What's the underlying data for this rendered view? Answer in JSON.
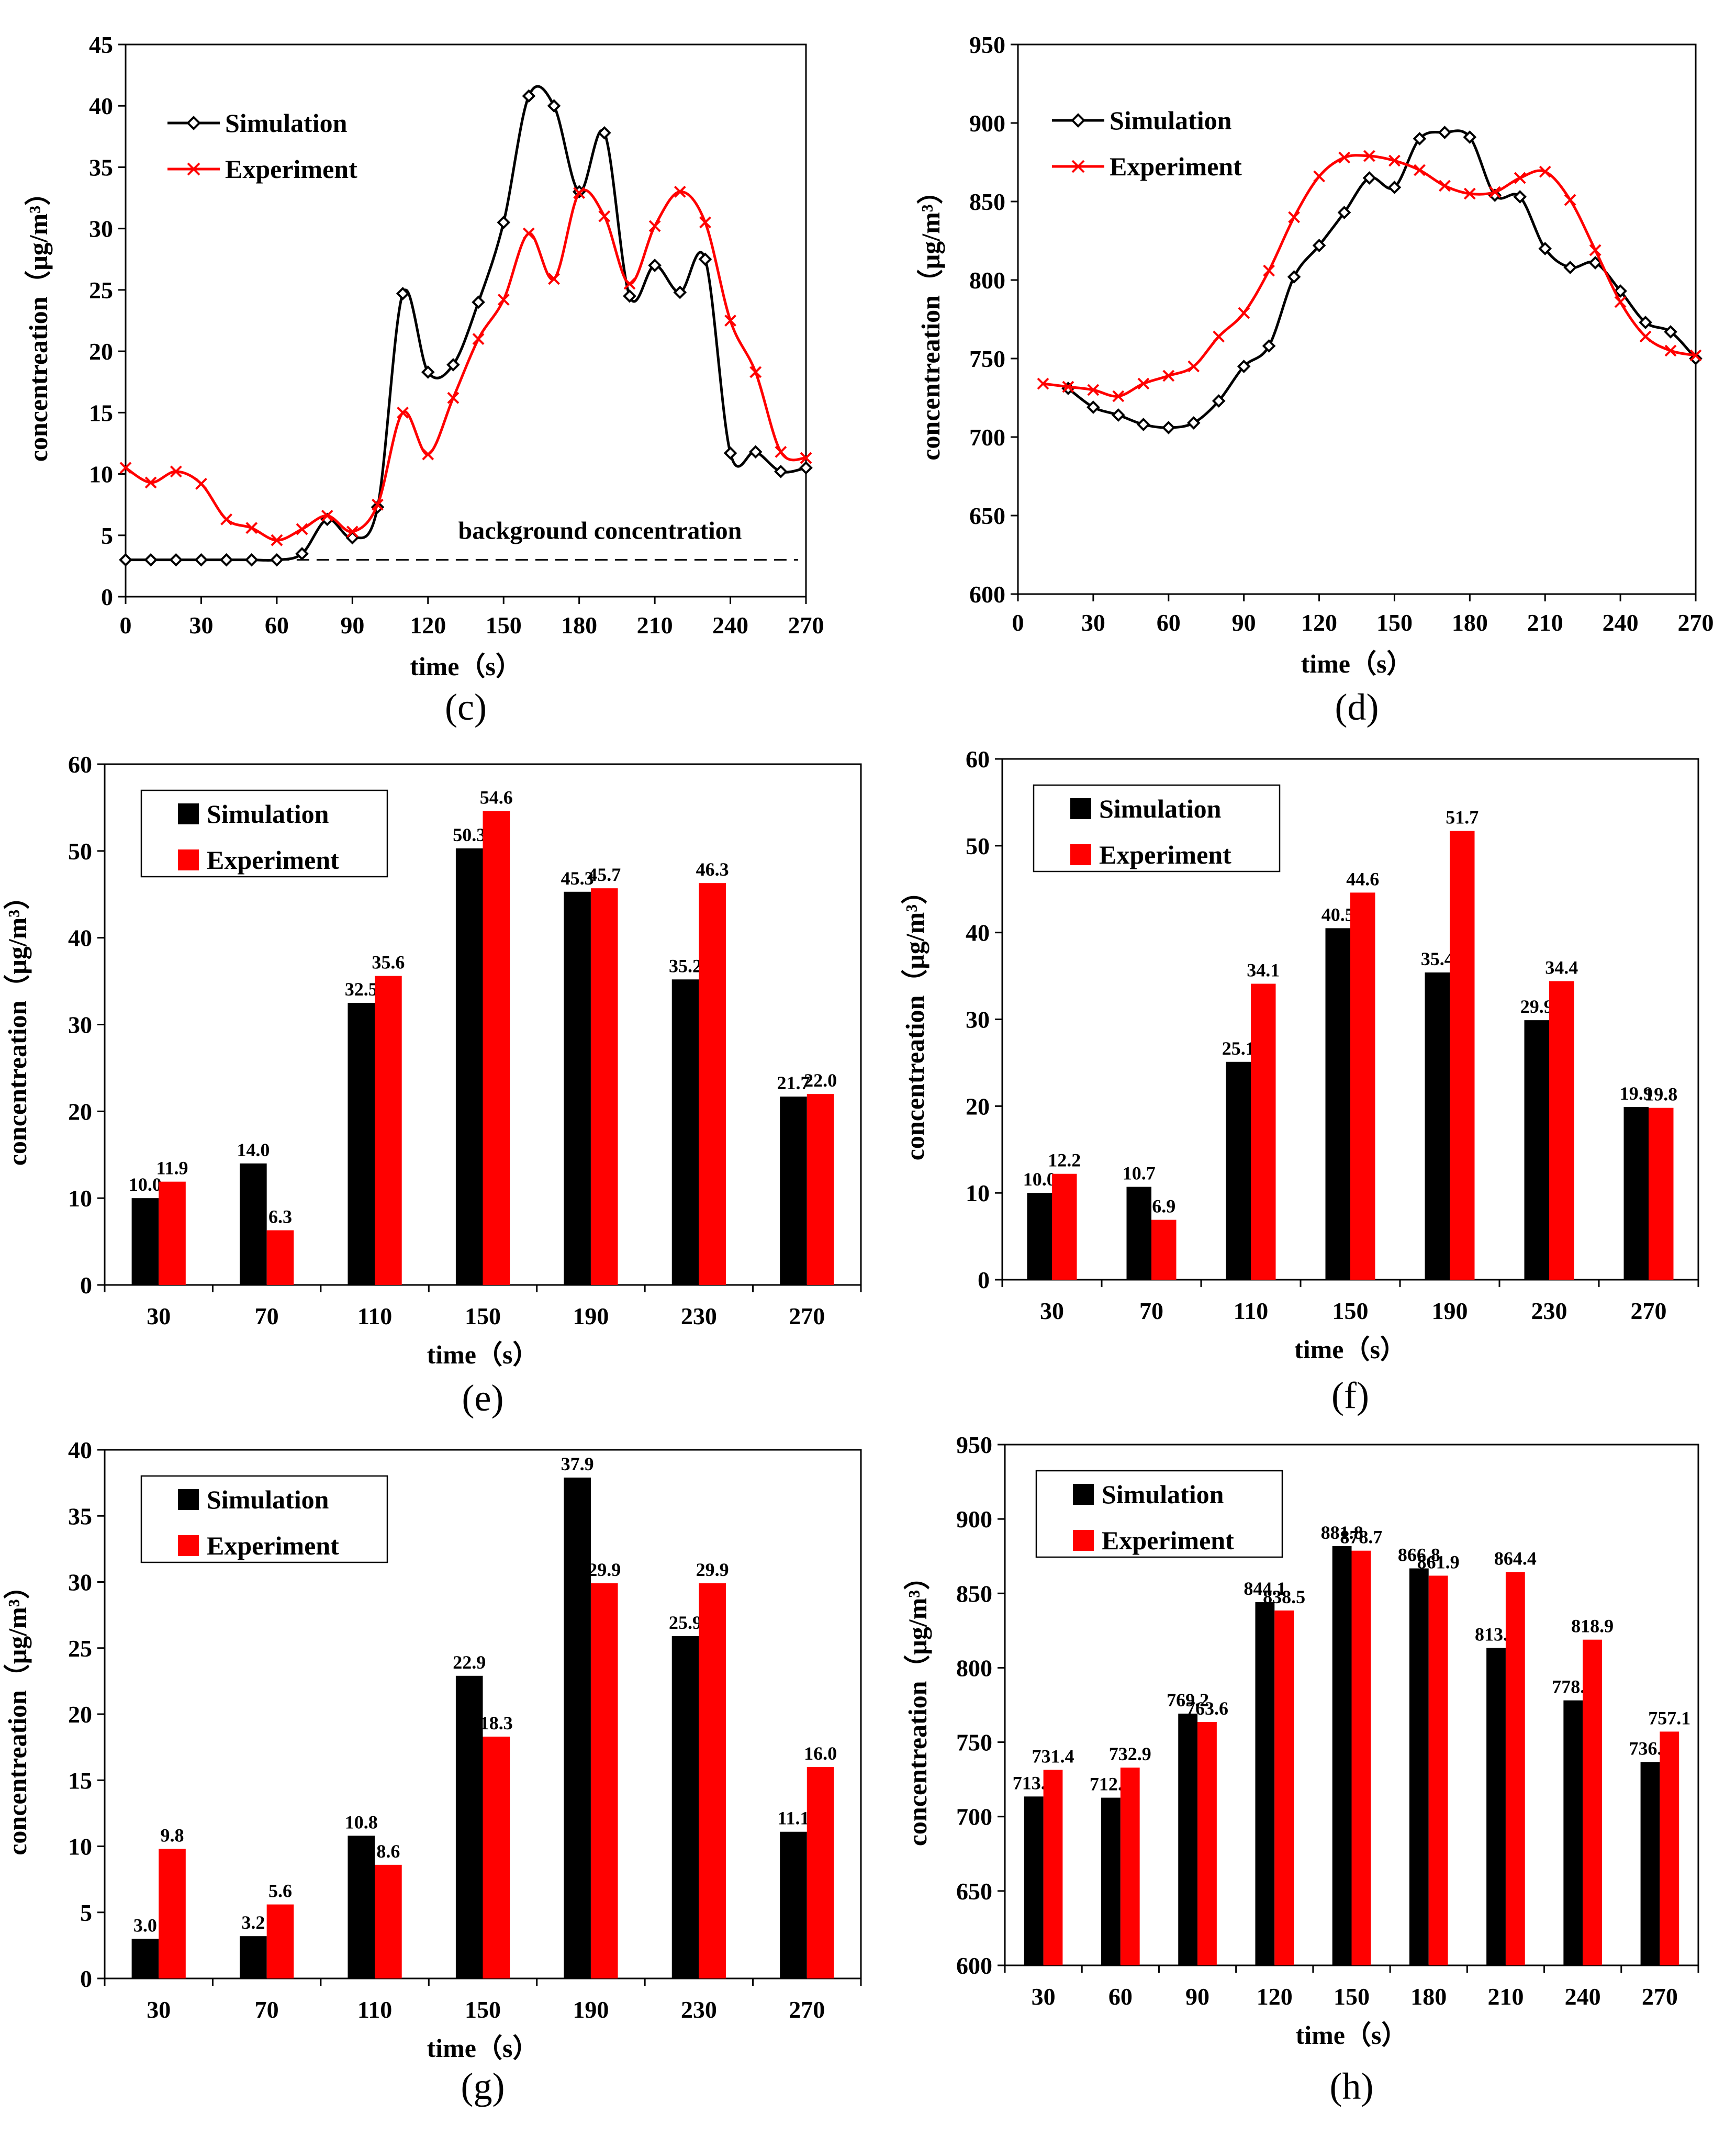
{
  "chart_data": [
    {
      "id": "c",
      "type": "line",
      "panel_label": "(c)",
      "xlabel": "time（s）",
      "ylabel": "concentreation（μg/m³）",
      "xlim": [
        0,
        270
      ],
      "ylim": [
        0,
        45
      ],
      "xticks": [
        0,
        30,
        60,
        90,
        120,
        150,
        180,
        210,
        240,
        270
      ],
      "yticks": [
        0,
        5,
        10,
        15,
        20,
        25,
        30,
        35,
        40,
        45
      ],
      "legend": [
        "Simulation",
        "Experiment"
      ],
      "series": [
        {
          "name": "Simulation",
          "color": "#000000",
          "marker": "diamond",
          "x": [
            0,
            10,
            20,
            30,
            40,
            50,
            60,
            70,
            80,
            90,
            100,
            110,
            120,
            130,
            140,
            150,
            160,
            170,
            180,
            190,
            200,
            210,
            220,
            230,
            240,
            250,
            260,
            270
          ],
          "y": [
            3.0,
            3.0,
            3.0,
            3.0,
            3.0,
            3.0,
            3.0,
            3.5,
            6.3,
            4.8,
            7.3,
            24.7,
            18.3,
            18.9,
            24.0,
            30.5,
            40.8,
            40.0,
            33.0,
            37.8,
            24.5,
            27.0,
            24.8,
            27.5,
            11.7,
            11.8,
            10.2,
            10.5
          ]
        },
        {
          "name": "Experiment",
          "color": "#ff0000",
          "marker": "x",
          "x": [
            0,
            10,
            20,
            30,
            40,
            50,
            60,
            70,
            80,
            90,
            100,
            110,
            120,
            130,
            140,
            150,
            160,
            170,
            180,
            190,
            200,
            210,
            220,
            230,
            240,
            250,
            260,
            270
          ],
          "y": [
            10.5,
            9.3,
            10.2,
            9.2,
            6.3,
            5.6,
            4.6,
            5.5,
            6.6,
            5.3,
            7.5,
            15.0,
            11.6,
            16.2,
            21.0,
            24.2,
            29.6,
            25.9,
            32.9,
            31.0,
            25.5,
            30.2,
            33.0,
            30.5,
            22.5,
            18.3,
            11.8,
            11.3
          ]
        }
      ],
      "background_concentration": {
        "label": "background concentration",
        "value": 3
      }
    },
    {
      "id": "d",
      "type": "line",
      "panel_label": "(d)",
      "xlabel": "time（s）",
      "ylabel": "concentreation（μg/m³）",
      "xlim": [
        0,
        270
      ],
      "ylim": [
        600,
        950
      ],
      "xticks": [
        0,
        30,
        60,
        90,
        120,
        150,
        180,
        210,
        240,
        270
      ],
      "yticks": [
        600,
        650,
        700,
        750,
        800,
        850,
        900,
        950
      ],
      "legend": [
        "Simulation",
        "Experiment"
      ],
      "series": [
        {
          "name": "Simulation",
          "color": "#000000",
          "marker": "diamond",
          "x": [
            20,
            30,
            40,
            50,
            60,
            70,
            80,
            90,
            100,
            110,
            120,
            130,
            140,
            150,
            160,
            170,
            180,
            190,
            200,
            210,
            220,
            230,
            240,
            250,
            260,
            270
          ],
          "y": [
            731,
            719,
            714,
            708,
            706,
            709,
            723,
            745,
            758,
            802,
            822,
            843,
            865,
            859,
            890,
            894,
            891,
            854,
            853,
            820,
            808,
            811,
            793,
            773,
            767,
            750
          ]
        },
        {
          "name": "Experiment",
          "color": "#ff0000",
          "marker": "x",
          "x": [
            10,
            20,
            30,
            40,
            50,
            60,
            70,
            80,
            90,
            100,
            110,
            120,
            130,
            140,
            150,
            160,
            170,
            180,
            190,
            200,
            210,
            220,
            230,
            240,
            250,
            260,
            270
          ],
          "y": [
            734,
            732,
            730,
            726,
            734,
            739,
            745,
            764,
            779,
            806,
            840,
            866,
            878,
            879,
            876,
            870,
            860,
            855,
            856,
            865,
            869,
            851,
            819,
            786,
            764,
            755,
            752
          ]
        }
      ]
    },
    {
      "id": "e",
      "type": "bar",
      "panel_label": "(e)",
      "xlabel": "time（s）",
      "ylabel": "concentreation（μg/m³）",
      "ylim": [
        0,
        60
      ],
      "yticks": [
        0,
        10,
        20,
        30,
        40,
        50,
        60
      ],
      "categories": [
        "30",
        "70",
        "110",
        "150",
        "190",
        "230",
        "270"
      ],
      "legend": [
        "Simulation",
        "Experiment"
      ],
      "series": [
        {
          "name": "Simulation",
          "color": "#000000",
          "values": [
            10.0,
            14.0,
            32.5,
            50.3,
            45.3,
            35.2,
            21.7
          ],
          "labels": [
            "10.0",
            "14.0",
            "32.5",
            "50.3",
            "45.3",
            "35.2",
            "21.7"
          ]
        },
        {
          "name": "Experiment",
          "color": "#ff0000",
          "values": [
            11.9,
            6.3,
            35.6,
            54.6,
            45.7,
            46.3,
            22.0
          ],
          "labels": [
            "11.9",
            "6.3",
            "35.6",
            "54.6",
            "45.7",
            "46.3",
            "22.0"
          ]
        }
      ]
    },
    {
      "id": "f",
      "type": "bar",
      "panel_label": "(f)",
      "xlabel": "time（s）",
      "ylabel": "concentreation（μg/m³）",
      "ylim": [
        0,
        60
      ],
      "yticks": [
        0,
        10,
        20,
        30,
        40,
        50,
        60
      ],
      "categories": [
        "30",
        "70",
        "110",
        "150",
        "190",
        "230",
        "270"
      ],
      "legend": [
        "Simulation",
        "Experiment"
      ],
      "series": [
        {
          "name": "Simulation",
          "color": "#000000",
          "values": [
            10.0,
            10.7,
            25.1,
            40.5,
            35.4,
            29.9,
            19.9
          ],
          "labels": [
            "10.0",
            "10.7",
            "25.1",
            "40.5",
            "35.4",
            "29.9",
            "19.9"
          ]
        },
        {
          "name": "Experiment",
          "color": "#ff0000",
          "values": [
            12.2,
            6.9,
            34.1,
            44.6,
            51.7,
            34.4,
            19.8
          ],
          "labels": [
            "12.2",
            "6.9",
            "34.1",
            "44.6",
            "51.7",
            "34.4",
            "19.8"
          ]
        }
      ]
    },
    {
      "id": "g",
      "type": "bar",
      "panel_label": "(g)",
      "xlabel": "time（s）",
      "ylabel": "concentreation（μg/m³）",
      "ylim": [
        0,
        40
      ],
      "yticks": [
        0,
        5,
        10,
        15,
        20,
        25,
        30,
        35,
        40
      ],
      "categories": [
        "30",
        "70",
        "110",
        "150",
        "190",
        "230",
        "270"
      ],
      "legend": [
        "Simulation",
        "Experiment"
      ],
      "series": [
        {
          "name": "Simulation",
          "color": "#000000",
          "values": [
            3.0,
            3.2,
            10.8,
            22.9,
            37.9,
            25.9,
            11.1
          ],
          "labels": [
            "3.0",
            "3.2",
            "10.8",
            "22.9",
            "37.9",
            "25.9",
            "11.1"
          ]
        },
        {
          "name": "Experiment",
          "color": "#ff0000",
          "values": [
            9.8,
            5.6,
            8.6,
            18.3,
            29.9,
            29.9,
            16.0
          ],
          "labels": [
            "9.8",
            "5.6",
            "8.6",
            "18.3",
            "29.9",
            "29.9",
            "16.0"
          ]
        }
      ]
    },
    {
      "id": "h",
      "type": "bar",
      "panel_label": "(h)",
      "xlabel": "time（s）",
      "ylabel": "concentreation（μg/m³）",
      "ylim": [
        600,
        950
      ],
      "yticks": [
        600,
        650,
        700,
        750,
        800,
        850,
        900,
        950
      ],
      "categories": [
        "30",
        "60",
        "90",
        "120",
        "150",
        "180",
        "210",
        "240",
        "270"
      ],
      "legend": [
        "Simulation",
        "Experiment"
      ],
      "series": [
        {
          "name": "Simulation",
          "color": "#000000",
          "values": [
            713.5,
            712.7,
            769.2,
            844.1,
            881.8,
            866.8,
            813.3,
            778.1,
            736.7
          ],
          "labels": [
            "713.5",
            "712.7",
            "769.2",
            "844.1",
            "881.8",
            "866.8",
            "813.3",
            "778.1",
            "736.7"
          ]
        },
        {
          "name": "Experiment",
          "color": "#ff0000",
          "values": [
            731.4,
            732.9,
            763.6,
            838.5,
            878.7,
            861.9,
            864.4,
            818.9,
            757.1
          ],
          "labels": [
            "731.4",
            "732.9",
            "763.6",
            "838.5",
            "878.7",
            "861.9",
            "864.4",
            "818.9",
            "757.1"
          ]
        }
      ]
    }
  ]
}
